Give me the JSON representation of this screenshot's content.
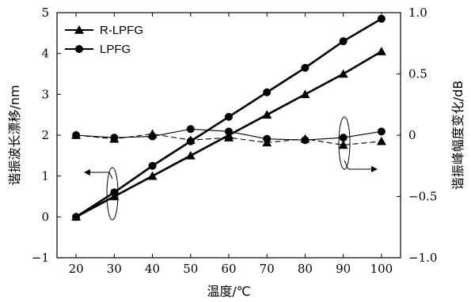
{
  "chart_data": {
    "type": "line",
    "xlabel": "温度/℃",
    "ylabel_left": "谐振波长漂移/nm",
    "ylabel_right": "谐振峰幅度变化/dB",
    "x": [
      20,
      30,
      40,
      50,
      60,
      70,
      80,
      90,
      100
    ],
    "xlim": [
      15,
      105
    ],
    "ylim_left": [
      -1,
      5
    ],
    "ylim_right": [
      -1.0,
      1.0
    ],
    "x_ticks": [
      "20",
      "30",
      "40",
      "50",
      "60",
      "70",
      "80",
      "90",
      "100"
    ],
    "y_left_ticks": [
      "-1",
      "0",
      "1",
      "2",
      "3",
      "4",
      "5"
    ],
    "y_right_ticks": [
      "-1.0",
      "-0.5",
      "0",
      "0.5",
      "1.0"
    ],
    "legend": [
      {
        "label": "R-LPFG",
        "marker": "triangle"
      },
      {
        "label": "LPFG",
        "marker": "circle"
      }
    ],
    "legend_position": "top-left",
    "grid": false,
    "series": [
      {
        "name": "R-LPFG",
        "axis": "left",
        "marker": "triangle",
        "line": "solid",
        "values": [
          0.0,
          0.5,
          1.0,
          1.5,
          2.0,
          2.5,
          3.0,
          3.5,
          4.05
        ]
      },
      {
        "name": "LPFG",
        "axis": "left",
        "marker": "circle",
        "line": "solid",
        "values": [
          0.0,
          0.6,
          1.25,
          1.85,
          2.45,
          3.05,
          3.65,
          4.3,
          4.85
        ]
      },
      {
        "name": "R-LPFG",
        "axis": "right",
        "marker": "triangle",
        "line": "dashed",
        "values": [
          0.0,
          -0.03,
          0.01,
          -0.04,
          -0.02,
          -0.06,
          -0.03,
          -0.08,
          -0.05
        ]
      },
      {
        "name": "LPFG",
        "axis": "right",
        "marker": "circle",
        "line": "solid-thin",
        "values": [
          0.0,
          -0.02,
          -0.01,
          0.05,
          0.03,
          -0.03,
          -0.04,
          -0.02,
          0.03
        ]
      }
    ]
  }
}
